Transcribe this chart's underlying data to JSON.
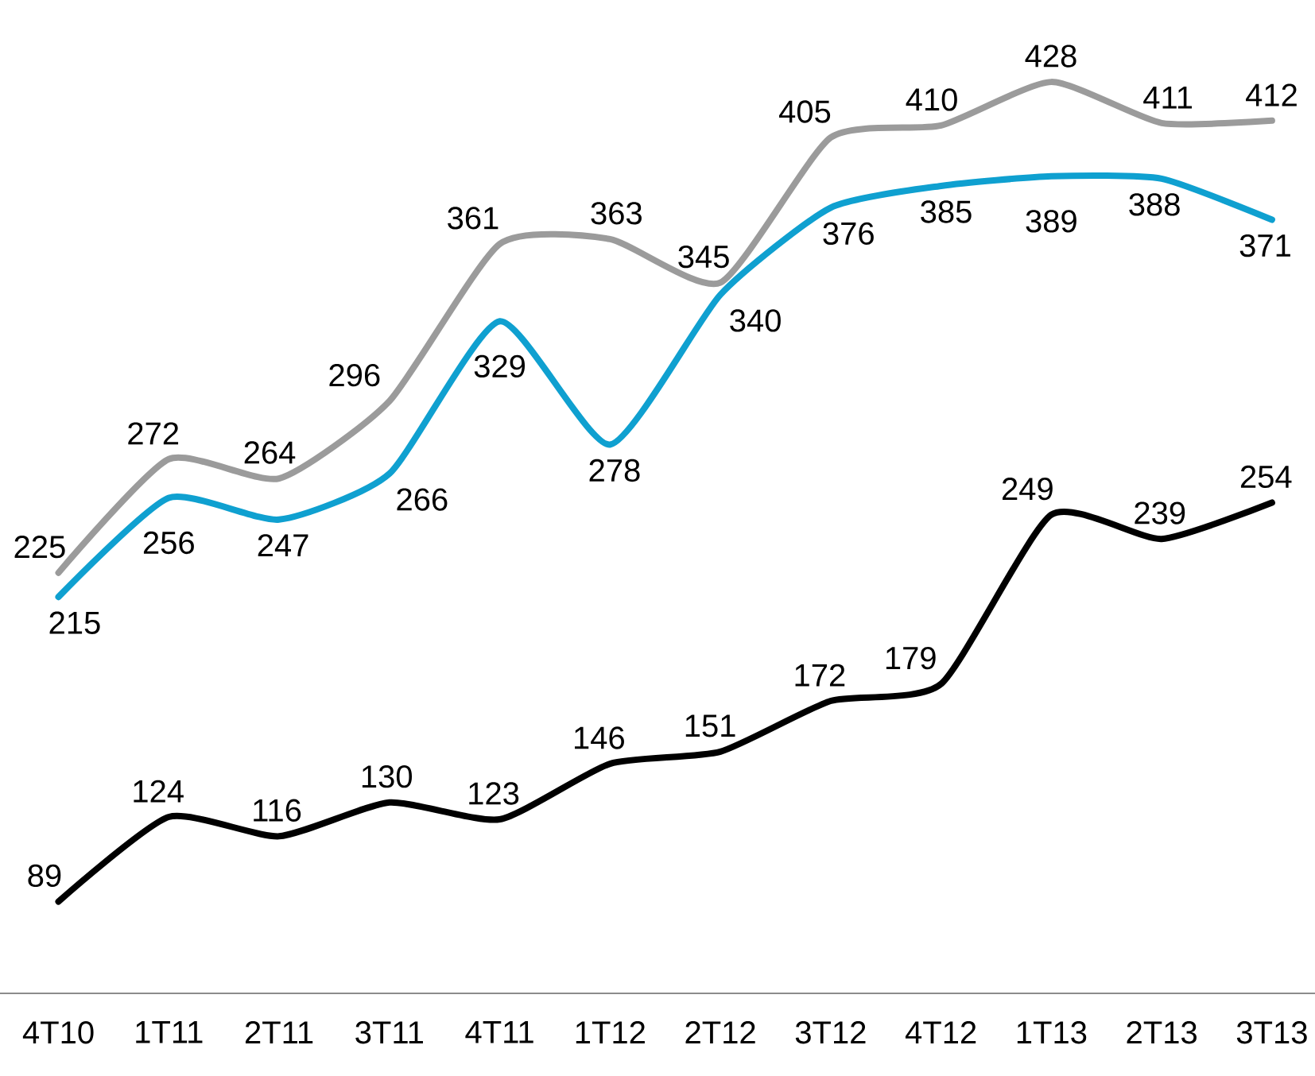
{
  "chart_data": {
    "type": "line",
    "categories": [
      "4T10",
      "1T11",
      "2T11",
      "3T11",
      "4T11",
      "1T12",
      "2T12",
      "3T12",
      "4T12",
      "1T13",
      "2T13",
      "3T13"
    ],
    "series": [
      {
        "color": "#9b9b9b",
        "values": [
          225,
          272,
          264,
          296,
          361,
          363,
          345,
          405,
          410,
          428,
          411,
          412
        ]
      },
      {
        "color": "#0fa0d0",
        "values": [
          215,
          256,
          247,
          266,
          329,
          278,
          340,
          376,
          385,
          389,
          388,
          371
        ]
      },
      {
        "color": "#000000",
        "values": [
          89,
          124,
          116,
          130,
          123,
          146,
          151,
          172,
          179,
          249,
          239,
          254
        ]
      }
    ],
    "data_labels": true
  }
}
